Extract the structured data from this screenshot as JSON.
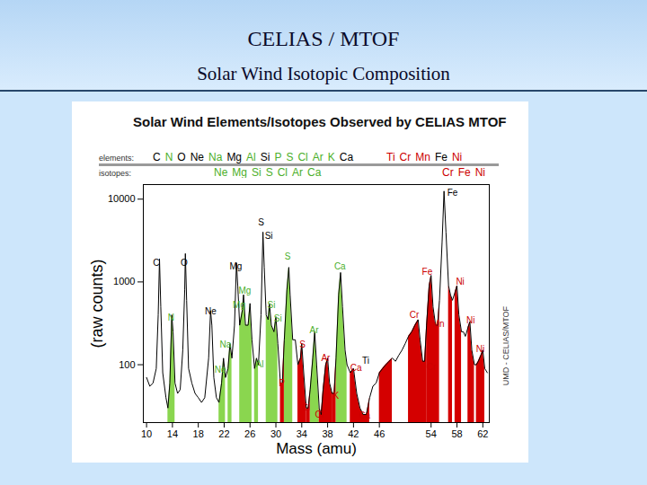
{
  "header": {
    "title": "CELIAS / MTOF",
    "subtitle": "Solar Wind Isotopic Composition"
  },
  "chart_data": {
    "type": "line",
    "title": "Solar Wind Elements/Isotopes Observed by CELIAS MTOF",
    "x_label": "Mass (amu)",
    "y_label": "(raw counts)",
    "log": "y",
    "grid": false,
    "xlim": [
      9.5,
      63
    ],
    "ylim": [
      20,
      15000
    ],
    "xticks": [
      10,
      14,
      18,
      22,
      26,
      30,
      34,
      38,
      42,
      46,
      54,
      58,
      62
    ],
    "yticks": [
      100,
      1000,
      10000
    ],
    "credit": "UMD - CELIAS/MTOF",
    "label_rows": [
      {
        "label": "elements:",
        "groups": [
          {
            "texts": [
              "C",
              "N",
              "O",
              "Ne",
              "Na",
              "Mg",
              "Al",
              "Si",
              "P",
              "S",
              "Cl",
              "Ar",
              "K",
              "Ca"
            ],
            "colors": [
              "#000000",
              "#4caf2a",
              "#000000",
              "#000000",
              "#4caf2a",
              "#000000",
              "#4caf2a",
              "#000000",
              "#4caf2a",
              "#4caf2a",
              "#4caf2a",
              "#4caf2a",
              "#4caf2a",
              "#000000"
            ]
          },
          {
            "texts": [
              "Ti",
              "Cr",
              "Mn",
              "Fe",
              "Ni"
            ],
            "colors": [
              "#cc0000",
              "#cc0000",
              "#cc0000",
              "#000000",
              "#cc0000"
            ]
          }
        ]
      },
      {
        "label": "isotopes:",
        "groups": [
          {
            "texts": [
              "Ne",
              "Mg",
              "Si",
              "S",
              "Cl",
              "Ar",
              "Ca"
            ],
            "colors": [
              "#4caf2a",
              "#4caf2a",
              "#4caf2a",
              "#4caf2a",
              "#4caf2a",
              "#4caf2a",
              "#4caf2a"
            ]
          },
          {
            "texts": [
              "Cr",
              "Fe",
              "Ni"
            ],
            "colors": [
              "#cc0000",
              "#cc0000",
              "#cc0000"
            ]
          }
        ]
      }
    ],
    "series": [
      {
        "type": "area",
        "color": "#8ad64f",
        "x": [
          13.3,
          13.6,
          13.9,
          14.1,
          14.4
        ],
        "values": [
          30,
          60,
          400,
          250,
          60
        ]
      },
      {
        "type": "area",
        "color": "#8ad64f",
        "x": [
          21.2,
          21.6,
          21.9,
          22.2
        ],
        "values": [
          35,
          60,
          120,
          70
        ]
      },
      {
        "type": "area",
        "color": "#8ad64f",
        "x": [
          22.6,
          22.9,
          23.2
        ],
        "values": [
          90,
          180,
          120
        ]
      },
      {
        "type": "area",
        "color": "#8ad64f",
        "x": [
          24.4,
          24.8,
          25,
          25.3,
          25.7,
          26,
          26.3
        ],
        "values": [
          300,
          450,
          700,
          300,
          300,
          550,
          200
        ]
      },
      {
        "type": "area",
        "color": "#8ad64f",
        "x": [
          26.7,
          27,
          27.3
        ],
        "values": [
          90,
          120,
          100
        ]
      },
      {
        "type": "area",
        "color": "#8ad64f",
        "x": [
          28.5,
          28.8,
          29,
          29.3,
          29.7,
          30,
          30.3
        ],
        "values": [
          400,
          350,
          550,
          300,
          250,
          380,
          180
        ]
      },
      {
        "type": "area",
        "color": "#8ad64f",
        "x": [
          31.3,
          31.7,
          32,
          32.2,
          32.6
        ],
        "values": [
          200,
          800,
          1500,
          700,
          200
        ]
      },
      {
        "type": "area",
        "color": "#8ad64f",
        "x": [
          35.3,
          35.7,
          36,
          36.3,
          36.7
        ],
        "values": [
          50,
          120,
          250,
          100,
          30
        ]
      },
      {
        "type": "area",
        "color": "#8ad64f",
        "x": [
          39.3,
          39.7,
          40,
          40.3,
          40.7,
          41
        ],
        "values": [
          120,
          700,
          1300,
          500,
          150,
          100
        ]
      },
      {
        "type": "area",
        "color": "#d40000",
        "x": [
          30.7,
          31,
          31.3
        ],
        "values": [
          60,
          60,
          200
        ]
      },
      {
        "type": "area",
        "color": "#d40000",
        "x": [
          33.4,
          33.8,
          34,
          34.3,
          34.7
        ],
        "values": [
          100,
          120,
          180,
          80,
          30
        ]
      },
      {
        "type": "area",
        "color": "#d40000",
        "x": [
          34.7,
          35,
          35.3
        ],
        "values": [
          30,
          30,
          50
        ]
      },
      {
        "type": "area",
        "color": "#d40000",
        "x": [
          36.7,
          37,
          37.3,
          37.7,
          38,
          38.3,
          38.7
        ],
        "values": [
          30,
          25,
          50,
          100,
          120,
          60,
          45
        ]
      },
      {
        "type": "area",
        "color": "#d40000",
        "x": [
          38.7,
          39,
          39.3
        ],
        "values": [
          45,
          45,
          120
        ]
      },
      {
        "type": "area",
        "color": "#d40000",
        "x": [
          41.5,
          42,
          42.5,
          43,
          43.5,
          44,
          44.5
        ],
        "values": [
          80,
          90,
          45,
          30,
          25,
          25,
          40
        ]
      },
      {
        "type": "area",
        "color": "#d40000",
        "x": [
          46,
          46.5,
          47,
          47.5,
          48
        ],
        "values": [
          80,
          90,
          100,
          110,
          120
        ]
      },
      {
        "type": "area",
        "color": "#d40000",
        "x": [
          50.5,
          51,
          51.5,
          52,
          52.3,
          52.7,
          53,
          53.3
        ],
        "values": [
          220,
          250,
          300,
          350,
          200,
          110,
          110,
          300
        ]
      },
      {
        "type": "area",
        "color": "#d40000",
        "x": [
          53.3,
          53.7,
          54,
          54.3,
          54.7,
          55,
          55.3
        ],
        "values": [
          300,
          900,
          1200,
          500,
          300,
          300,
          600
        ]
      },
      {
        "type": "area",
        "color": "#d40000",
        "x": [
          56.7,
          57,
          57.3
        ],
        "values": [
          900,
          700,
          600
        ]
      },
      {
        "type": "area",
        "color": "#d40000",
        "x": [
          57.7,
          58,
          58.3,
          58.7
        ],
        "values": [
          750,
          900,
          400,
          250
        ]
      },
      {
        "type": "area",
        "color": "#d40000",
        "x": [
          59.7,
          60,
          60.3,
          60.7
        ],
        "values": [
          280,
          330,
          150,
          100
        ]
      },
      {
        "type": "area",
        "color": "#d40000",
        "x": [
          61,
          61.3,
          61.7,
          62,
          62.3
        ],
        "values": [
          100,
          110,
          130,
          150,
          90
        ]
      },
      {
        "type": "line",
        "color": "#000000",
        "x": [
          10,
          10.5,
          11,
          11.5,
          11.8,
          12,
          12.2,
          12.5,
          13,
          13.3,
          13.6,
          13.9,
          14.1,
          14.4,
          14.8,
          15.2,
          15.6,
          15.9,
          16,
          16.2,
          16.5,
          17,
          17.5,
          18,
          18.5,
          19,
          19.6,
          19.9,
          20.1,
          20.4,
          20.8,
          21.2,
          21.6,
          21.9,
          22.2,
          22.6,
          22.9,
          23.2,
          23.6,
          23.9,
          24.1,
          24.4,
          24.8,
          25,
          25.3,
          25.7,
          26,
          26.3,
          26.7,
          27,
          27.3,
          27.7,
          28,
          28.2,
          28.5,
          28.8,
          29,
          29.3,
          29.7,
          30,
          30.3,
          30.7,
          31,
          31.3,
          31.7,
          32,
          32.2,
          32.6,
          33,
          33.4,
          33.8,
          34,
          34.3,
          34.7,
          35,
          35.3,
          35.7,
          36,
          36.3,
          36.7,
          37,
          37.3,
          37.7,
          38,
          38.3,
          38.7,
          39,
          39.3,
          39.7,
          40,
          40.3,
          40.7,
          41,
          41.5,
          42,
          42.5,
          43,
          43.5,
          44,
          44.5,
          45,
          45.5,
          46,
          46.5,
          47,
          47.5,
          48,
          48.5,
          49,
          49.5,
          50,
          50.5,
          51,
          51.5,
          52,
          52.3,
          52.7,
          53,
          53.3,
          53.7,
          54,
          54.3,
          54.7,
          55,
          55.3,
          55.7,
          56,
          56.3,
          56.7,
          57,
          57.3,
          57.7,
          58,
          58.3,
          58.7,
          59,
          59.3,
          59.7,
          60,
          60.3,
          60.7,
          61,
          61.3,
          61.7,
          62,
          62.3,
          62.7
        ],
        "values": [
          70,
          55,
          60,
          90,
          400,
          1900,
          500,
          80,
          40,
          30,
          60,
          400,
          250,
          60,
          45,
          50,
          150,
          800,
          2200,
          600,
          90,
          60,
          45,
          40,
          35,
          40,
          120,
          450,
          300,
          70,
          40,
          35,
          60,
          120,
          70,
          90,
          180,
          120,
          300,
          1700,
          900,
          300,
          450,
          700,
          300,
          300,
          550,
          200,
          90,
          120,
          100,
          400,
          4000,
          1500,
          400,
          350,
          550,
          300,
          250,
          380,
          180,
          60,
          60,
          200,
          800,
          1500,
          700,
          200,
          200,
          100,
          120,
          180,
          80,
          30,
          30,
          50,
          120,
          250,
          100,
          30,
          25,
          50,
          100,
          120,
          60,
          45,
          45,
          120,
          700,
          1300,
          500,
          150,
          100,
          80,
          90,
          45,
          30,
          25,
          25,
          40,
          55,
          60,
          80,
          90,
          100,
          110,
          120,
          110,
          130,
          150,
          180,
          220,
          250,
          300,
          350,
          200,
          110,
          110,
          300,
          900,
          1200,
          500,
          300,
          300,
          600,
          3000,
          12500,
          4000,
          900,
          700,
          600,
          750,
          900,
          400,
          250,
          250,
          220,
          280,
          330,
          150,
          100,
          100,
          110,
          130,
          150,
          90,
          80
        ]
      }
    ],
    "annotations": [
      {
        "text": "C",
        "x": 11.5,
        "y": 1700,
        "color": "#000000"
      },
      {
        "text": "O",
        "x": 15.8,
        "y": 1700,
        "color": "#000000"
      },
      {
        "text": "N",
        "x": 13.8,
        "y": 370,
        "color": "#4caf2a"
      },
      {
        "text": "Ne",
        "x": 19.9,
        "y": 445,
        "color": "#000000"
      },
      {
        "text": "Mg",
        "x": 23.8,
        "y": 1540,
        "color": "#000000"
      },
      {
        "text": "Mg",
        "x": 25.2,
        "y": 790,
        "color": "#4caf2a"
      },
      {
        "text": "Mg",
        "x": 24.3,
        "y": 520,
        "color": "#4caf2a"
      },
      {
        "text": "Na",
        "x": 22.2,
        "y": 175,
        "color": "#4caf2a"
      },
      {
        "text": "Ne",
        "x": 21.4,
        "y": 86,
        "color": "#4caf2a"
      },
      {
        "text": "Al",
        "x": 27.5,
        "y": 100,
        "color": "#4caf2a"
      },
      {
        "text": "S",
        "x": 27.7,
        "y": 5170,
        "color": "#000000"
      },
      {
        "text": "Si",
        "x": 28.9,
        "y": 3600,
        "color": "#000000"
      },
      {
        "text": "Si",
        "x": 29.3,
        "y": 530,
        "color": "#4caf2a"
      },
      {
        "text": "Si",
        "x": 30.3,
        "y": 360,
        "color": "#4caf2a"
      },
      {
        "text": "S",
        "x": 31.8,
        "y": 2000,
        "color": "#4caf2a"
      },
      {
        "text": "P",
        "x": 30.9,
        "y": 59,
        "color": "#cc0000"
      },
      {
        "text": "S",
        "x": 34.1,
        "y": 175,
        "color": "#cc0000"
      },
      {
        "text": "Ar",
        "x": 35.9,
        "y": 260,
        "color": "#4caf2a"
      },
      {
        "text": "Ca",
        "x": 39.9,
        "y": 1540,
        "color": "#4caf2a"
      },
      {
        "text": "Cl",
        "x": 34.6,
        "y": 30,
        "color": "#cc0000"
      },
      {
        "text": "Cl",
        "x": 36.7,
        "y": 25,
        "color": "#cc0000"
      },
      {
        "text": "Ar",
        "x": 37.7,
        "y": 120,
        "color": "#cc0000"
      },
      {
        "text": "K",
        "x": 39.3,
        "y": 42,
        "color": "#cc0000"
      },
      {
        "text": "Ca",
        "x": 42.4,
        "y": 91,
        "color": "#cc0000"
      },
      {
        "text": "Ca",
        "x": 43.7,
        "y": 24,
        "color": "#cc0000"
      },
      {
        "text": "Ti",
        "x": 43.9,
        "y": 110,
        "color": "#000000"
      },
      {
        "text": "Cr",
        "x": 51.4,
        "y": 400,
        "color": "#cc0000"
      },
      {
        "text": "Fe",
        "x": 53.4,
        "y": 1320,
        "color": "#cc0000"
      },
      {
        "text": "Fe",
        "x": 57.3,
        "y": 12000,
        "color": "#000000"
      },
      {
        "text": "Mn",
        "x": 55.1,
        "y": 310,
        "color": "#cc0000"
      },
      {
        "text": "Ni",
        "x": 58.5,
        "y": 1000,
        "color": "#cc0000"
      },
      {
        "text": "Ni",
        "x": 60.1,
        "y": 340,
        "color": "#cc0000"
      },
      {
        "text": "Ni",
        "x": 61.6,
        "y": 155,
        "color": "#cc0000"
      },
      {
        "text": "Cr",
        "x": 54.0,
        "y": 93,
        "color": "#cc0000"
      }
    ]
  }
}
